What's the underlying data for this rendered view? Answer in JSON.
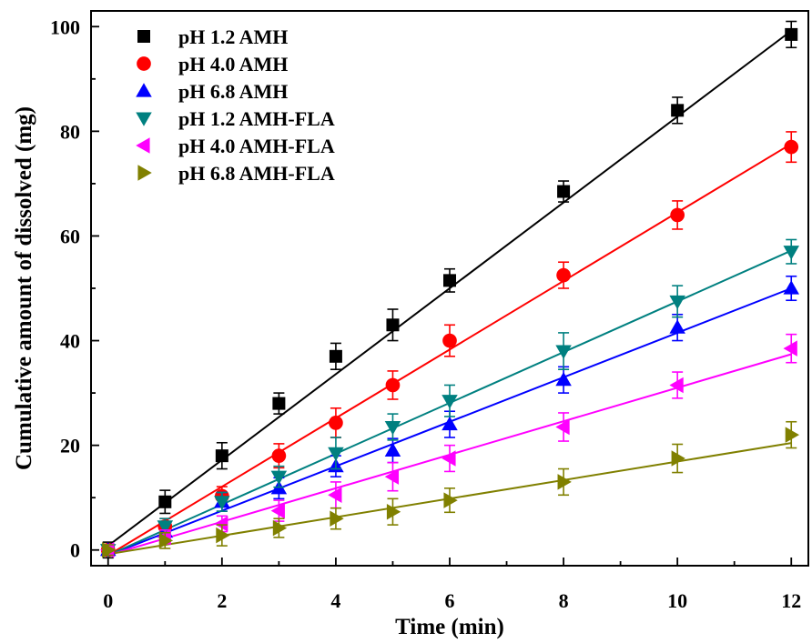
{
  "chart_data": {
    "type": "scatter",
    "title": "",
    "xlabel": "Time (min)",
    "ylabel": "Cumulative amount of dissolved (mg)",
    "xlim": [
      -0.3,
      12.3
    ],
    "ylim": [
      -3,
      103
    ],
    "xticks": [
      0,
      2,
      4,
      6,
      8,
      10,
      12
    ],
    "yticks": [
      0,
      20,
      40,
      60,
      80,
      100
    ],
    "x": [
      0,
      1,
      2,
      3,
      4,
      5,
      6,
      8,
      10,
      12
    ],
    "legend_position": "top-left",
    "fit_lines": true,
    "series": [
      {
        "name": "pH 1.2 AMH",
        "color": "#000000",
        "marker": "square",
        "values": [
          0,
          9.2,
          18,
          28,
          37,
          43,
          51.5,
          68.5,
          84,
          98.5
        ],
        "errors": [
          1.5,
          2.2,
          2.5,
          2,
          2.5,
          3,
          2.2,
          2,
          2.5,
          2.5
        ],
        "fit": [
          0.8,
          8.2
        ]
      },
      {
        "name": "pH 4.0 AMH",
        "color": "#ff0000",
        "marker": "circle",
        "values": [
          0,
          4.5,
          10.3,
          18,
          24.3,
          31.5,
          40,
          52.5,
          64,
          77
        ],
        "errors": [
          1,
          1.5,
          1.8,
          2.3,
          2.8,
          2.7,
          3,
          2.5,
          2.7,
          2.9
        ],
        "fit": [
          -1.0,
          6.55
        ]
      },
      {
        "name": "pH 6.8 AMH",
        "color": "#0000ff",
        "marker": "triangle-up",
        "values": [
          0,
          3.5,
          9.2,
          11.8,
          16,
          19,
          24,
          32.5,
          42.5,
          50
        ],
        "errors": [
          1,
          1.5,
          1.8,
          2,
          2,
          2.3,
          2.5,
          2.5,
          2.5,
          2.3
        ],
        "fit": [
          -1.0,
          4.25
        ]
      },
      {
        "name": "pH 1.2 AMH-FLA",
        "color": "#008080",
        "marker": "triangle-down",
        "values": [
          0,
          4.5,
          9.2,
          14,
          18.5,
          23.5,
          28.5,
          38,
          47.5,
          57
        ],
        "errors": [
          1,
          1.5,
          1.8,
          2,
          3,
          2.5,
          3,
          3.5,
          3,
          2.3
        ],
        "fit": [
          -1.0,
          4.85
        ]
      },
      {
        "name": "pH 4.0 AMH-FLA",
        "color": "#ff00ff",
        "marker": "triangle-left",
        "values": [
          0,
          2.5,
          5,
          7.5,
          10.5,
          14,
          17.5,
          23.5,
          31.5,
          38.5
        ],
        "errors": [
          1,
          1.3,
          1.5,
          2,
          2.5,
          2.7,
          2.5,
          2.7,
          2.5,
          2.7
        ],
        "fit": [
          -1.0,
          3.2
        ]
      },
      {
        "name": "pH 6.8 AMH-FLA",
        "color": "#808000",
        "marker": "triangle-right",
        "values": [
          0,
          1.8,
          2.8,
          4.2,
          6,
          7.3,
          9.5,
          13,
          17.5,
          22
        ],
        "errors": [
          1,
          1.5,
          2,
          1.8,
          2,
          2.5,
          2.3,
          2.5,
          2.7,
          2.5
        ],
        "fit": [
          -0.8,
          1.77
        ]
      }
    ]
  }
}
